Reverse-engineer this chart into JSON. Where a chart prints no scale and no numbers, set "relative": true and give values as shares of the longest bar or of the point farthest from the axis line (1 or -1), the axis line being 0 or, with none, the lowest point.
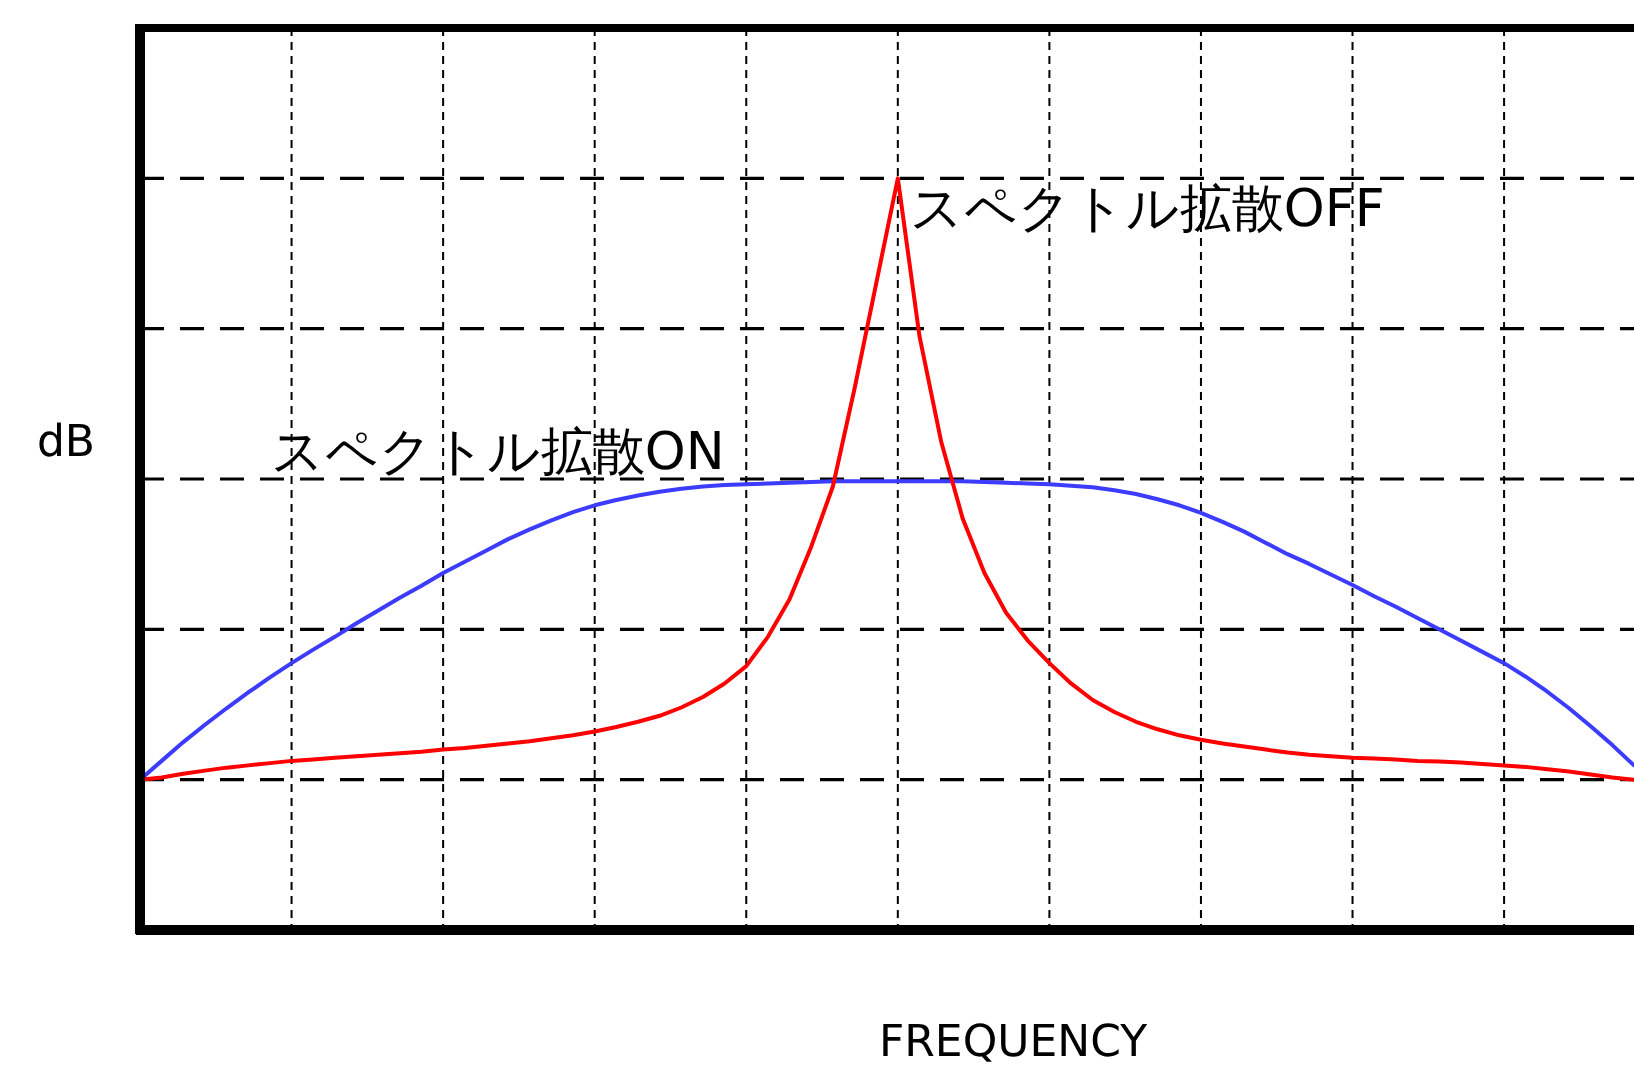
{
  "chart_data": {
    "type": "line",
    "xlabel": "FREQUENCY",
    "ylabel": "dB",
    "relative": true,
    "grid": true,
    "line_style": "solid",
    "categories": [
      null,
      null,
      null,
      null,
      null,
      null,
      null,
      null,
      null,
      null,
      null,
      null,
      null,
      null,
      null,
      null,
      null,
      null,
      null,
      null,
      null,
      null,
      null,
      null,
      null,
      null,
      null,
      null,
      null,
      null,
      null,
      null,
      null,
      null,
      null,
      null,
      null,
      null,
      null,
      null,
      null,
      null,
      null,
      null,
      null,
      null,
      null,
      null,
      null,
      null,
      null,
      null,
      null,
      null,
      null,
      null,
      null,
      null,
      null,
      null,
      null,
      null,
      null,
      null,
      null,
      null,
      null,
      null,
      null,
      null
    ],
    "series": [
      {
        "name": "スペクトル拡散ON",
        "color": "#3c3cff",
        "values": [
          0.2,
          0.225,
          0.25,
          0.273,
          0.295,
          0.316,
          0.336,
          0.355,
          0.373,
          0.39,
          0.408,
          0.425,
          0.442,
          0.458,
          0.475,
          0.49,
          0.505,
          0.52,
          0.533,
          0.545,
          0.556,
          0.565,
          0.572,
          0.578,
          0.583,
          0.587,
          0.59,
          0.592,
          0.593,
          0.594,
          0.595,
          0.596,
          0.597,
          0.597,
          0.597,
          0.597,
          0.597,
          0.597,
          0.597,
          0.596,
          0.595,
          0.594,
          0.593,
          0.591,
          0.589,
          0.585,
          0.58,
          0.573,
          0.565,
          0.555,
          0.543,
          0.53,
          0.515,
          0.5,
          0.487,
          0.473,
          0.459,
          0.444,
          0.43,
          0.415,
          0.4,
          0.385,
          0.37,
          0.355,
          0.337,
          0.317,
          0.295,
          0.271,
          0.246,
          0.219
        ]
      },
      {
        "name": "スペクトル拡散OFF",
        "color": "#ff0000",
        "values": [
          0.2,
          0.203,
          0.208,
          0.212,
          0.216,
          0.219,
          0.222,
          0.225,
          0.227,
          0.229,
          0.231,
          0.233,
          0.235,
          0.237,
          0.24,
          0.242,
          0.245,
          0.248,
          0.251,
          0.255,
          0.259,
          0.264,
          0.27,
          0.277,
          0.285,
          0.296,
          0.31,
          0.328,
          0.351,
          0.39,
          0.44,
          0.51,
          0.59,
          0.72,
          0.86,
          1.0,
          0.79,
          0.65,
          0.547,
          0.475,
          0.422,
          0.385,
          0.355,
          0.328,
          0.306,
          0.29,
          0.277,
          0.267,
          0.259,
          0.253,
          0.248,
          0.244,
          0.24,
          0.236,
          0.233,
          0.231,
          0.229,
          0.228,
          0.227,
          0.225,
          0.224,
          0.223,
          0.221,
          0.219,
          0.217,
          0.214,
          0.211,
          0.207,
          0.203,
          0.2
        ]
      }
    ]
  }
}
